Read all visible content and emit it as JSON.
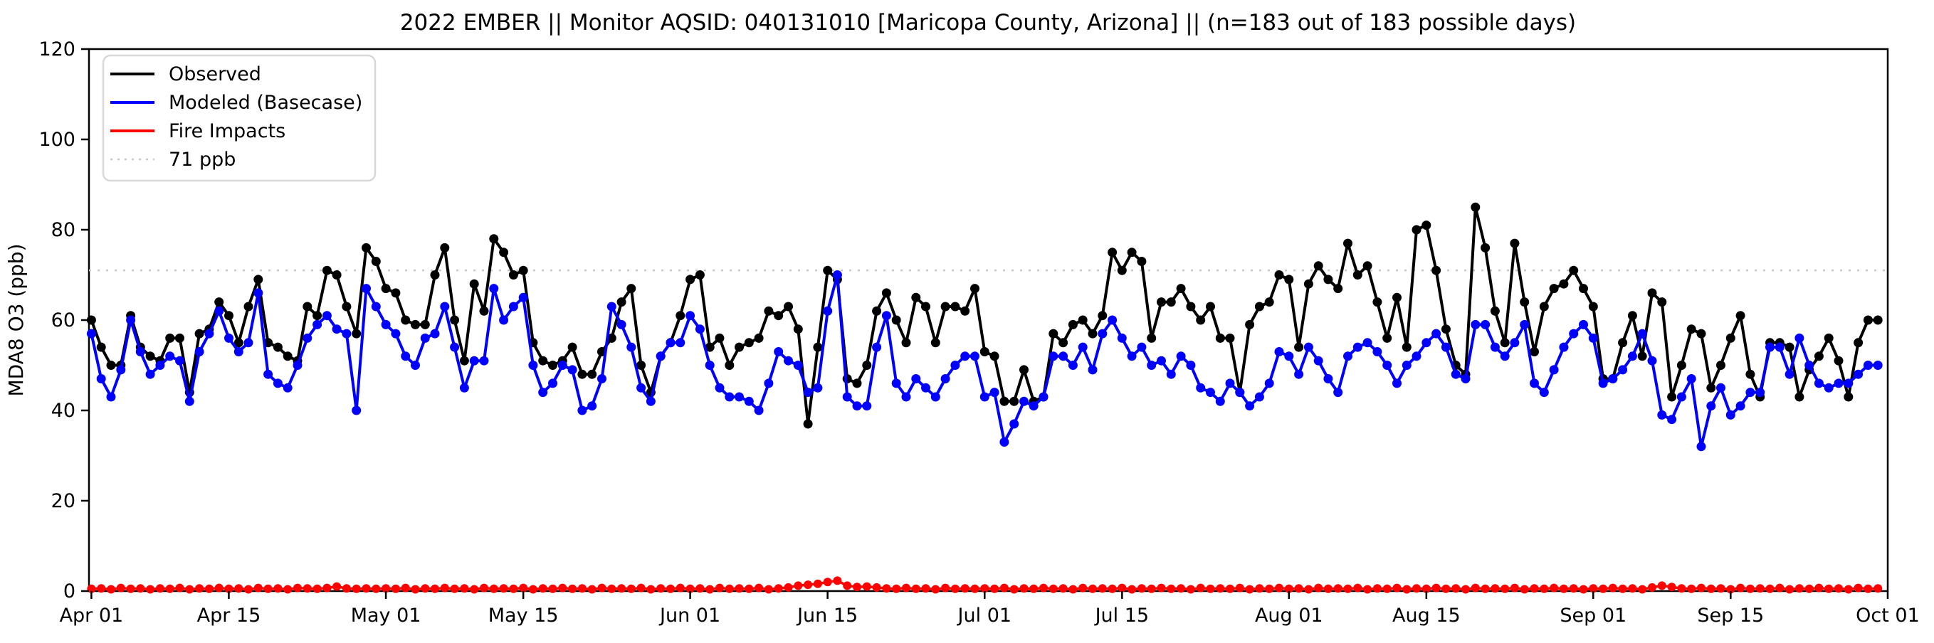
{
  "figure": {
    "title": "2022 EMBER || Monitor AQSID: 040131010 [Maricopa County, Arizona] || (n=183 out of 183 possible days)",
    "ylabel": "MDA8 O3 (ppb)",
    "background": "#ffffff"
  },
  "chart_data": {
    "type": "line",
    "title": "2022 EMBER || Monitor AQSID: 040131010 [Maricopa County, Arizona] || (n=183 out of 183 possible days)",
    "xlabel": "",
    "ylabel": "MDA8 O3 (ppb)",
    "ylim": [
      0,
      120
    ],
    "yticks": [
      0,
      20,
      40,
      60,
      80,
      100,
      120
    ],
    "n_days": 183,
    "x_range": [
      "Apr 01",
      "Oct 01"
    ],
    "grid": false,
    "legend_position": "upper left",
    "xticks": [
      {
        "day": 0,
        "label": "Apr 01"
      },
      {
        "day": 14,
        "label": "Apr 15"
      },
      {
        "day": 30,
        "label": "May 01"
      },
      {
        "day": 44,
        "label": "May 15"
      },
      {
        "day": 61,
        "label": "Jun 01"
      },
      {
        "day": 75,
        "label": "Jun 15"
      },
      {
        "day": 91,
        "label": "Jul 01"
      },
      {
        "day": 105,
        "label": "Jul 15"
      },
      {
        "day": 122,
        "label": "Aug 01"
      },
      {
        "day": 136,
        "label": "Aug 15"
      },
      {
        "day": 153,
        "label": "Sep 01"
      },
      {
        "day": 167,
        "label": "Sep 15"
      },
      {
        "day": 183,
        "label": "Oct 01"
      }
    ],
    "threshold": {
      "value": 71,
      "label": "71 ppb",
      "color": "#c8c8c8"
    },
    "series": [
      {
        "name": "Observed",
        "color": "#000000",
        "values": [
          60,
          54,
          50,
          50,
          61,
          54,
          52,
          51,
          56,
          56,
          44,
          57,
          58,
          64,
          61,
          55,
          63,
          69,
          55,
          54,
          52,
          51,
          63,
          61,
          71,
          70,
          63,
          57,
          76,
          73,
          67,
          66,
          60,
          59,
          59,
          70,
          76,
          60,
          51,
          68,
          62,
          78,
          75,
          70,
          71,
          55,
          51,
          50,
          51,
          54,
          48,
          48,
          53,
          56,
          64,
          67,
          50,
          44,
          52,
          55,
          61,
          69,
          70,
          54,
          56,
          50,
          54,
          55,
          56,
          62,
          61,
          63,
          58,
          37,
          54,
          71,
          69,
          47,
          46,
          50,
          62,
          66,
          60,
          55,
          65,
          63,
          55,
          63,
          63,
          62,
          67,
          53,
          52,
          42,
          42,
          49,
          42,
          43,
          57,
          55,
          59,
          60,
          57,
          61,
          75,
          71,
          75,
          73,
          56,
          64,
          64,
          67,
          63,
          60,
          63,
          56,
          56,
          44,
          59,
          63,
          64,
          70,
          69,
          54,
          68,
          72,
          69,
          67,
          77,
          70,
          72,
          64,
          56,
          65,
          54,
          80,
          81,
          71,
          58,
          50,
          48,
          85,
          76,
          62,
          55,
          77,
          64,
          53,
          63,
          67,
          68,
          71,
          67,
          63,
          47,
          47,
          55,
          61,
          52,
          66,
          64,
          43,
          50,
          58,
          57,
          45,
          50,
          56,
          61,
          48,
          43,
          55,
          55,
          54,
          43,
          49,
          52,
          56,
          51,
          43,
          55,
          60,
          60
        ]
      },
      {
        "name": "Modeled (Basecase)",
        "color": "#0000ff",
        "values": [
          57,
          47,
          43,
          49,
          60,
          53,
          48,
          50,
          52,
          51,
          42,
          53,
          57,
          62,
          56,
          53,
          55,
          66,
          48,
          46,
          45,
          50,
          56,
          59,
          61,
          58,
          57,
          40,
          67,
          63,
          59,
          57,
          52,
          50,
          56,
          57,
          63,
          54,
          45,
          51,
          51,
          67,
          60,
          63,
          65,
          50,
          44,
          46,
          50,
          49,
          40,
          41,
          47,
          63,
          59,
          54,
          45,
          42,
          52,
          55,
          55,
          61,
          58,
          50,
          45,
          43,
          43,
          42,
          40,
          46,
          53,
          51,
          50,
          44,
          45,
          62,
          70,
          43,
          41,
          41,
          54,
          61,
          46,
          43,
          47,
          45,
          43,
          47,
          50,
          52,
          52,
          43,
          44,
          33,
          37,
          42,
          41,
          43,
          52,
          52,
          50,
          54,
          49,
          57,
          60,
          56,
          52,
          54,
          50,
          51,
          48,
          52,
          50,
          45,
          44,
          42,
          46,
          44,
          41,
          43,
          46,
          53,
          52,
          48,
          54,
          51,
          47,
          44,
          52,
          54,
          55,
          53,
          50,
          46,
          50,
          52,
          55,
          57,
          54,
          48,
          47,
          59,
          59,
          54,
          52,
          55,
          59,
          46,
          44,
          49,
          54,
          57,
          59,
          56,
          46,
          47,
          49,
          52,
          57,
          51,
          39,
          38,
          43,
          47,
          32,
          41,
          45,
          39,
          41,
          44,
          44,
          54,
          54,
          48,
          56,
          50,
          46,
          45,
          46,
          46,
          48,
          50,
          50
        ]
      },
      {
        "name": "Fire Impacts",
        "color": "#ff0000",
        "values": [
          0.5,
          0.6,
          0.4,
          0.7,
          0.5,
          0.6,
          0.4,
          0.6,
          0.5,
          0.7,
          0.4,
          0.6,
          0.5,
          0.7,
          0.5,
          0.6,
          0.4,
          0.7,
          0.5,
          0.6,
          0.4,
          0.7,
          0.6,
          0.5,
          0.7,
          1.0,
          0.6,
          0.5,
          0.6,
          0.5,
          0.6,
          0.5,
          0.7,
          0.4,
          0.6,
          0.5,
          0.7,
          0.5,
          0.6,
          0.4,
          0.7,
          0.5,
          0.6,
          0.5,
          0.7,
          0.4,
          0.6,
          0.5,
          0.7,
          0.5,
          0.6,
          0.4,
          0.7,
          0.5,
          0.6,
          0.5,
          0.7,
          0.4,
          0.6,
          0.5,
          0.7,
          0.5,
          0.6,
          0.4,
          0.7,
          0.5,
          0.6,
          0.5,
          0.7,
          0.4,
          0.6,
          0.8,
          1.2,
          1.4,
          1.6,
          2.0,
          2.3,
          1.2,
          0.9,
          1.0,
          0.8,
          0.6,
          0.5,
          0.7,
          0.5,
          0.6,
          0.4,
          0.7,
          0.5,
          0.6,
          0.5,
          0.6,
          0.5,
          0.7,
          0.4,
          0.6,
          0.5,
          0.7,
          0.5,
          0.6,
          0.4,
          0.7,
          0.5,
          0.6,
          0.5,
          0.7,
          0.4,
          0.6,
          0.5,
          0.7,
          0.5,
          0.6,
          0.4,
          0.7,
          0.5,
          0.6,
          0.5,
          0.7,
          0.4,
          0.6,
          0.5,
          0.7,
          0.5,
          0.6,
          0.4,
          0.7,
          0.5,
          0.6,
          0.5,
          0.7,
          0.4,
          0.6,
          0.5,
          0.7,
          0.4,
          0.6,
          0.5,
          0.7,
          0.5,
          0.6,
          0.4,
          0.7,
          0.5,
          0.6,
          0.5,
          0.7,
          0.4,
          0.6,
          0.5,
          0.7,
          0.5,
          0.6,
          0.4,
          0.6,
          0.5,
          0.7,
          0.5,
          0.6,
          0.4,
          0.8,
          1.2,
          0.9,
          0.6,
          0.5,
          0.7,
          0.5,
          0.6,
          0.4,
          0.7,
          0.5,
          0.6,
          0.5,
          0.7,
          0.4,
          0.6,
          0.5,
          0.7,
          0.5,
          0.6,
          0.4,
          0.7,
          0.5,
          0.6
        ]
      }
    ]
  },
  "layout_colors": {
    "spine": "#000000",
    "legend_border": "#d8d8d8",
    "legend_bg": "#ffffff"
  }
}
